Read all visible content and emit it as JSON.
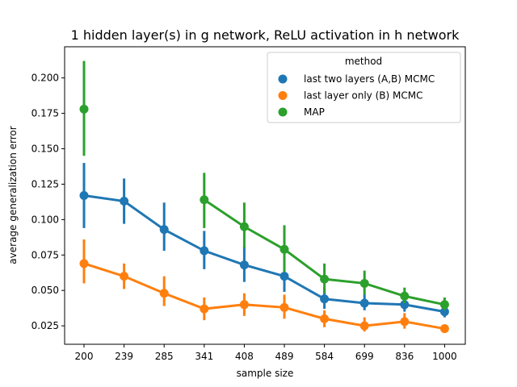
{
  "chart_data": {
    "type": "line",
    "title": "1 hidden layer(s) in g network, ReLU activation in h network",
    "xlabel": "sample size",
    "ylabel": "average generalization error",
    "categories": [
      "200",
      "239",
      "285",
      "341",
      "408",
      "489",
      "584",
      "699",
      "836",
      "1000"
    ],
    "ylim": [
      0.012,
      0.222
    ],
    "yticks": [
      0.025,
      0.05,
      0.075,
      0.1,
      0.125,
      0.15,
      0.175,
      0.2
    ],
    "ytick_labels": [
      "0.025",
      "0.050",
      "0.075",
      "0.100",
      "0.125",
      "0.150",
      "0.175",
      "0.200"
    ],
    "legend": {
      "title": "method",
      "position": "upper-right"
    },
    "series": [
      {
        "name": "last two layers (A,B) MCMC",
        "color": "#1f77b4",
        "values": [
          0.117,
          0.113,
          0.093,
          0.078,
          0.068,
          0.06,
          0.044,
          0.041,
          0.04,
          0.035
        ],
        "err_low": [
          0.094,
          0.097,
          0.078,
          0.065,
          0.056,
          0.049,
          0.037,
          0.036,
          0.035,
          0.031
        ],
        "err_high": [
          0.14,
          0.129,
          0.112,
          0.092,
          0.081,
          0.073,
          0.052,
          0.047,
          0.045,
          0.039
        ]
      },
      {
        "name": "last layer only (B) MCMC",
        "color": "#ff7f0e",
        "values": [
          0.069,
          0.06,
          0.048,
          0.037,
          0.04,
          0.038,
          0.03,
          0.025,
          0.028,
          0.023
        ],
        "err_low": [
          0.055,
          0.051,
          0.039,
          0.029,
          0.032,
          0.03,
          0.024,
          0.021,
          0.023,
          0.021
        ],
        "err_high": [
          0.086,
          0.069,
          0.06,
          0.045,
          0.048,
          0.047,
          0.036,
          0.031,
          0.034,
          0.026
        ]
      },
      {
        "name": "MAP",
        "color": "#2ca02c",
        "start_index": 0,
        "values": [
          0.178,
          null,
          null,
          0.114,
          0.095,
          0.079,
          0.058,
          0.055,
          0.046,
          0.04
        ],
        "err_low": [
          0.145,
          null,
          null,
          0.094,
          0.08,
          0.063,
          0.048,
          0.047,
          0.041,
          0.036
        ],
        "err_high": [
          0.212,
          null,
          null,
          0.133,
          0.112,
          0.096,
          0.069,
          0.064,
          0.052,
          0.045
        ]
      }
    ]
  }
}
